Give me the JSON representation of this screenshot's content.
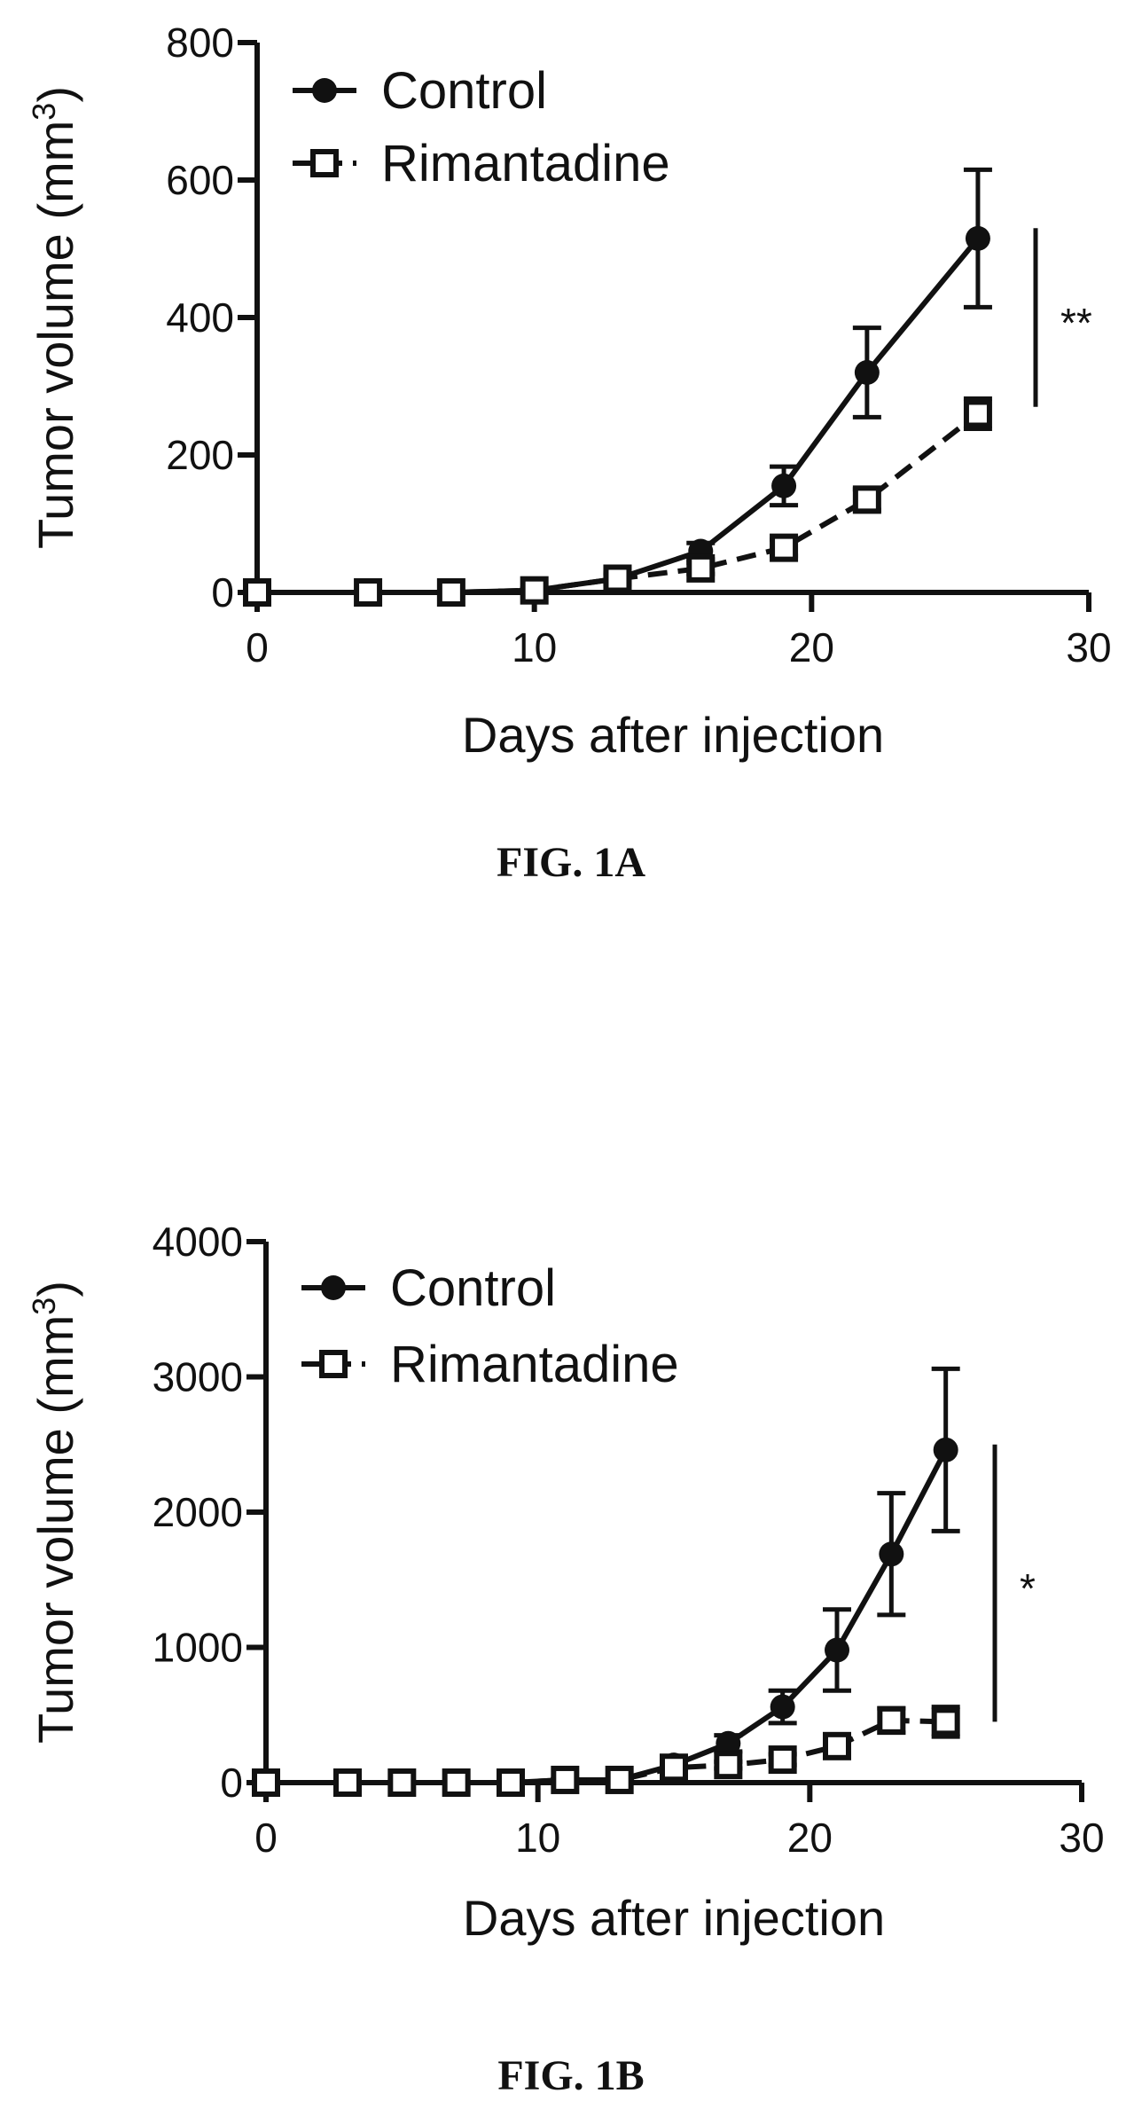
{
  "chart_data": [
    {
      "type": "line",
      "caption": "FIG. 1A",
      "xlabel": "Days after injection",
      "ylabel_main": "Tumor volume (mm",
      "ylabel_sup": "3",
      "ylabel_close": ")",
      "xlim": [
        0,
        30
      ],
      "ylim": [
        0,
        800
      ],
      "xticks": [
        0,
        10,
        20,
        30
      ],
      "yticks": [
        0,
        200,
        400,
        600,
        800
      ],
      "xtick_labels": [
        "0",
        "10",
        "20",
        "30"
      ],
      "ytick_labels": [
        "0",
        "200",
        "400",
        "600",
        "800"
      ],
      "legend": {
        "placement": "top-left",
        "entries": [
          "Control",
          "Rimantadine"
        ]
      },
      "significance": {
        "label": "**",
        "y_range": [
          270,
          530
        ]
      },
      "series": [
        {
          "name": "Control",
          "marker": "filled-circle",
          "line": "solid",
          "x": [
            0,
            4,
            7,
            10,
            13,
            16,
            19,
            22,
            26
          ],
          "y": [
            0,
            0,
            0,
            3,
            20,
            60,
            155,
            320,
            515
          ],
          "err": [
            0,
            0,
            0,
            2,
            8,
            12,
            28,
            65,
            100
          ]
        },
        {
          "name": "Rimantadine",
          "marker": "open-square",
          "line": "dashed",
          "x": [
            0,
            4,
            7,
            10,
            13,
            16,
            19,
            22,
            26
          ],
          "y": [
            0,
            0,
            0,
            3,
            20,
            35,
            65,
            135,
            260
          ],
          "err": [
            0,
            0,
            0,
            2,
            6,
            8,
            12,
            15,
            22
          ]
        }
      ]
    },
    {
      "type": "line",
      "caption": "FIG. 1B",
      "xlabel": "Days after injection",
      "ylabel_main": "Tumor volume (mm",
      "ylabel_sup": "3",
      "ylabel_close": ")",
      "xlim": [
        0,
        30
      ],
      "ylim": [
        0,
        4000
      ],
      "xticks": [
        0,
        10,
        20,
        30
      ],
      "yticks": [
        0,
        1000,
        2000,
        3000,
        4000
      ],
      "xtick_labels": [
        "0",
        "10",
        "20",
        "30"
      ],
      "ytick_labels": [
        "0",
        "1000",
        "2000",
        "3000",
        "4000"
      ],
      "legend": {
        "placement": "top-left",
        "entries": [
          "Control",
          "Rimantadine"
        ]
      },
      "significance": {
        "label": "*",
        "y_range": [
          450,
          2500
        ]
      },
      "series": [
        {
          "name": "Control",
          "marker": "filled-circle",
          "line": "solid",
          "x": [
            0,
            3,
            5,
            7,
            9,
            11,
            13,
            15,
            17,
            19,
            21,
            23,
            25
          ],
          "y": [
            0,
            0,
            0,
            0,
            0,
            20,
            20,
            130,
            290,
            560,
            980,
            1690,
            2460
          ],
          "err": [
            0,
            0,
            0,
            0,
            0,
            5,
            5,
            40,
            60,
            120,
            300,
            450,
            600
          ]
        },
        {
          "name": "Rimantadine",
          "marker": "open-square",
          "line": "dashed",
          "x": [
            0,
            3,
            5,
            7,
            9,
            11,
            13,
            15,
            17,
            19,
            21,
            23,
            25
          ],
          "y": [
            0,
            0,
            0,
            0,
            0,
            20,
            20,
            110,
            130,
            170,
            270,
            460,
            450
          ],
          "err": [
            0,
            0,
            0,
            0,
            0,
            5,
            5,
            20,
            25,
            40,
            50,
            90,
            110
          ]
        }
      ]
    }
  ]
}
